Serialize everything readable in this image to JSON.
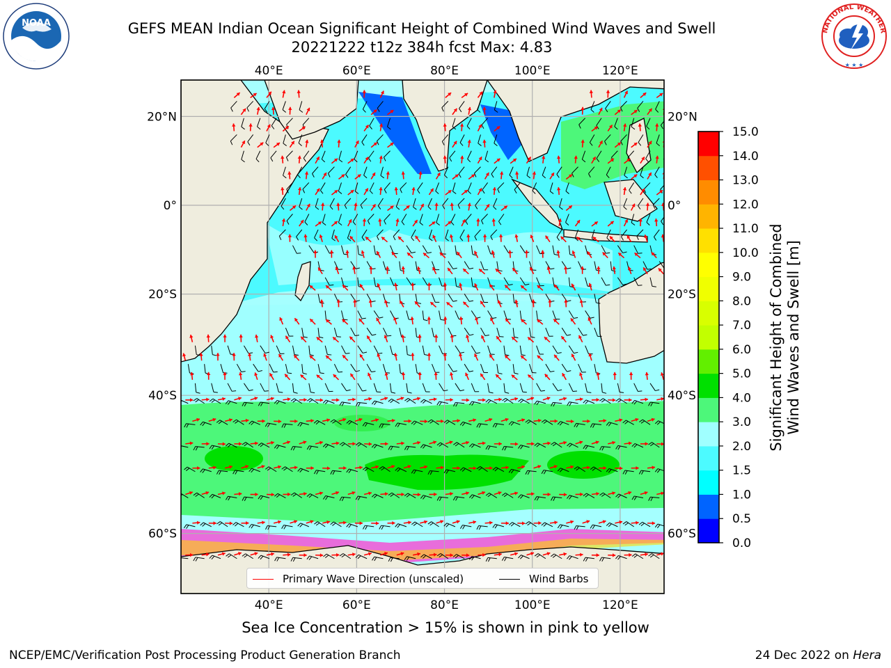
{
  "title": {
    "line1": "GEFS MEAN Indian Ocean Significant Height of Combined Wind Waves and Swell",
    "line2": "20221222 t12z 384h fcst   Max: 4.83"
  },
  "map": {
    "lon_range": [
      20,
      130
    ],
    "lat_range": [
      -72,
      28
    ],
    "lon_ticks": [
      {
        "value": 40,
        "label": "40°E"
      },
      {
        "value": 60,
        "label": "60°E"
      },
      {
        "value": 80,
        "label": "80°E"
      },
      {
        "value": 100,
        "label": "100°E"
      },
      {
        "value": 120,
        "label": "120°E"
      }
    ],
    "lat_ticks": [
      {
        "value": 20,
        "label": "20°N"
      },
      {
        "value": 0,
        "label": "0°"
      },
      {
        "value": -20,
        "label": "20°S"
      },
      {
        "value": -40,
        "label": "40°S"
      },
      {
        "value": -60,
        "label": "60°S"
      }
    ],
    "grid": true,
    "land_color": "#efedde",
    "wave_arrow_color": "#ff0000",
    "wind_barb_color": "#000000"
  },
  "colorbar": {
    "title_line1": "Significant Height of Combined",
    "title_line2": "Wind Waves and Swell [m]",
    "levels": [
      "0.0",
      "0.5",
      "1.0",
      "1.5",
      "2.0",
      "3.0",
      "4.0",
      "5.0",
      "6.0",
      "7.0",
      "8.0",
      "9.0",
      "10.0",
      "11.0",
      "12.0",
      "13.0",
      "14.0",
      "15.0"
    ],
    "colors": [
      "#0000ff",
      "#0064ff",
      "#00ffff",
      "#4cfaff",
      "#a0ffff",
      "#4df77a",
      "#00e000",
      "#62ef00",
      "#c2ff00",
      "#d8ff00",
      "#f0ff00",
      "#ffff00",
      "#ffe000",
      "#ffb400",
      "#ff8c00",
      "#ff5000",
      "#ff0000"
    ]
  },
  "legend": {
    "wave_label": "Primary Wave Direction (unscaled)",
    "wind_label": "Wind Barbs"
  },
  "caption": "Sea Ice Concentration > 15% is shown in pink to yellow",
  "footer": {
    "left": "NCEP/EMC/Verification Post Processing Product Generation Branch",
    "right_date": "24 Dec 2022 on ",
    "right_machine": "Hera"
  },
  "logos": {
    "noaa_text": "NOAA",
    "nws_text": "NATIONAL WEATHER SERVICE"
  }
}
